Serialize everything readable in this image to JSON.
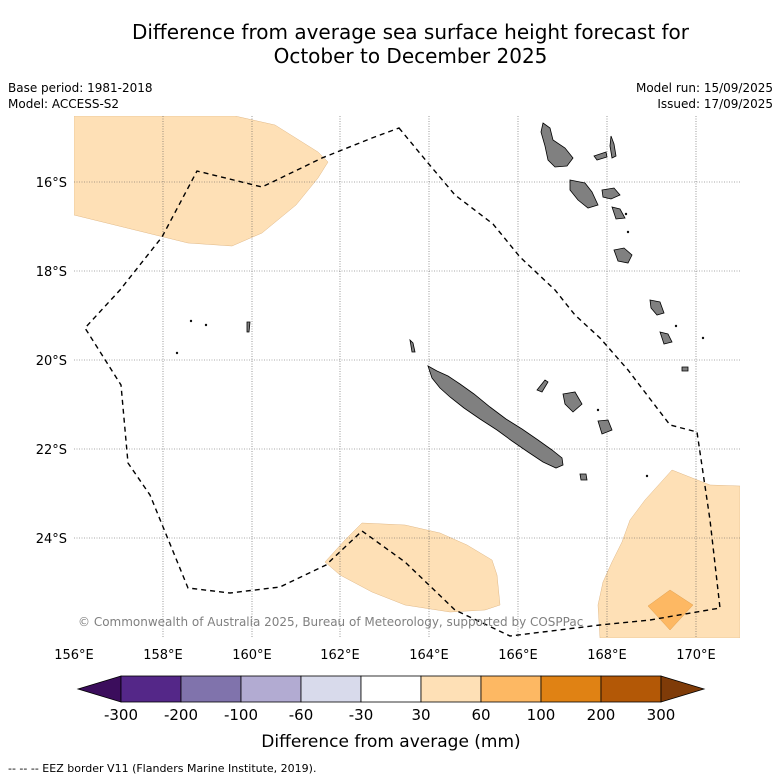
{
  "title_line1": "Difference from average sea surface height forecast for",
  "title_line2": "October to December 2025",
  "base_period": "Base period: 1981-2018",
  "model": "Model: ACCESS-S2",
  "model_run": "Model run: 15/09/2025",
  "issued": "Issued: 17/09/2025",
  "copyright": "© Commonwealth of Australia 2025, Bureau of Meteorology, supported by COSPPac",
  "lon_ticks": [
    "156°E",
    "158°E",
    "160°E",
    "162°E",
    "164°E",
    "166°E",
    "168°E",
    "170°E"
  ],
  "lat_ticks": [
    "16°S",
    "18°S",
    "20°S",
    "22°S",
    "24°S"
  ],
  "colorbar": {
    "ticks": [
      "-300",
      "-200",
      "-100",
      "-60",
      "-30",
      "30",
      "60",
      "100",
      "200",
      "300"
    ],
    "colors": [
      "#3b0d5c",
      "#542788",
      "#8073ac",
      "#b2abd2",
      "#d8daeb",
      "#ffffff",
      "#fee0b6",
      "#fdb863",
      "#e08214",
      "#b35806",
      "#7f3b08"
    ],
    "label": "Difference from average (mm)"
  },
  "footer": "--  --  -- EEZ border V11 (Flanders Marine Institute, 2019)."
}
